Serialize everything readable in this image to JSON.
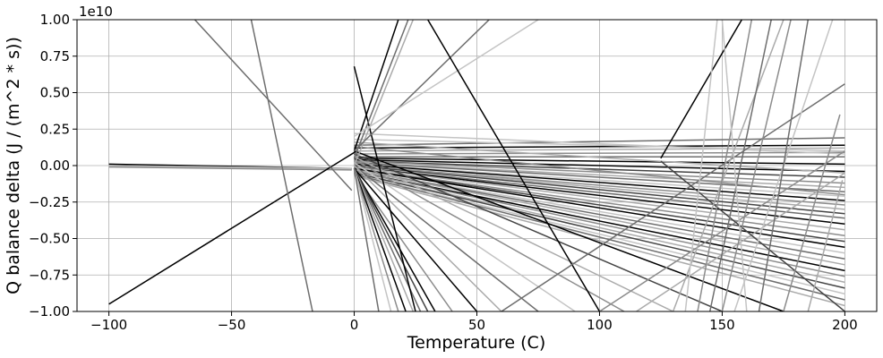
{
  "chart_data": {
    "type": "line",
    "title": "",
    "xlabel": "Temperature (C)",
    "ylabel": "Q balance delta (J / (m^2 * s))",
    "offset_text": "1e10",
    "xlim": [
      -113,
      213
    ],
    "ylim": [
      -1.0,
      1.0
    ],
    "y_multiplier": 10000000000,
    "grid": true,
    "x_ticks": [
      -100,
      -50,
      0,
      50,
      100,
      150,
      200
    ],
    "x_tick_labels": [
      "−100",
      "−50",
      "0",
      "50",
      "100",
      "150",
      "200"
    ],
    "y_ticks": [
      -1.0,
      -0.75,
      -0.5,
      -0.25,
      0.0,
      0.25,
      0.5,
      0.75,
      1.0
    ],
    "y_tick_labels": [
      "−1.00",
      "−0.75",
      "−0.50",
      "−0.25",
      "0.00",
      "0.25",
      "0.50",
      "0.75",
      "1.00"
    ],
    "colors": [
      "#000000",
      "#444444",
      "#6e6e6e",
      "#8c8c8c",
      "#aaaaaa",
      "#c4c4c4"
    ],
    "segments": [
      {
        "x": [
          -100,
          -1
        ],
        "y": [
          0.01,
          -0.02
        ],
        "c": 0
      },
      {
        "x": [
          -100,
          -1
        ],
        "y": [
          0.0,
          -0.02
        ],
        "c": 4
      },
      {
        "x": [
          -100,
          -1
        ],
        "y": [
          -0.005,
          -0.025
        ],
        "c": 5
      },
      {
        "x": [
          -100,
          -1
        ],
        "y": [
          -0.01,
          -0.03
        ],
        "c": 3
      },
      {
        "x": [
          -100,
          1
        ],
        "y": [
          -0.95,
          0.1
        ],
        "c": 0
      },
      {
        "x": [
          -65,
          -1
        ],
        "y": [
          1.0,
          -0.17
        ],
        "c": 2
      },
      {
        "x": [
          -42,
          -17
        ],
        "y": [
          1.0,
          -1.0
        ],
        "c": 2
      },
      {
        "x": [
          0,
          200
        ],
        "y": [
          0.14,
          0.19
        ],
        "c": 2
      },
      {
        "x": [
          0,
          200
        ],
        "y": [
          0.12,
          0.14
        ],
        "c": 0
      },
      {
        "x": [
          0,
          200
        ],
        "y": [
          0.1,
          0.12
        ],
        "c": 4
      },
      {
        "x": [
          0,
          200
        ],
        "y": [
          0.08,
          0.09
        ],
        "c": 3
      },
      {
        "x": [
          0,
          200
        ],
        "y": [
          0.06,
          0.06
        ],
        "c": 2
      },
      {
        "x": [
          0,
          200
        ],
        "y": [
          0.05,
          0.01
        ],
        "c": 0
      },
      {
        "x": [
          0,
          200
        ],
        "y": [
          0.04,
          -0.04
        ],
        "c": 0
      },
      {
        "x": [
          0,
          200
        ],
        "y": [
          0.03,
          -0.08
        ],
        "c": 1
      },
      {
        "x": [
          0,
          200
        ],
        "y": [
          0.03,
          -0.12
        ],
        "c": 3
      },
      {
        "x": [
          0,
          200
        ],
        "y": [
          0.02,
          -0.15
        ],
        "c": 4
      },
      {
        "x": [
          0,
          200
        ],
        "y": [
          0.02,
          -0.18
        ],
        "c": 2
      },
      {
        "x": [
          0,
          200
        ],
        "y": [
          0.01,
          -0.21
        ],
        "c": 5
      },
      {
        "x": [
          0,
          200
        ],
        "y": [
          0.01,
          -0.24
        ],
        "c": 0
      },
      {
        "x": [
          0,
          200
        ],
        "y": [
          0.0,
          -0.27
        ],
        "c": 3
      },
      {
        "x": [
          0,
          200
        ],
        "y": [
          0.0,
          -0.3
        ],
        "c": 4
      },
      {
        "x": [
          0,
          200
        ],
        "y": [
          0.0,
          -0.33
        ],
        "c": 1
      },
      {
        "x": [
          0,
          200
        ],
        "y": [
          -0.01,
          -0.36
        ],
        "c": 2
      },
      {
        "x": [
          0,
          200
        ],
        "y": [
          -0.01,
          -0.4
        ],
        "c": 0
      },
      {
        "x": [
          0,
          200
        ],
        "y": [
          -0.01,
          -0.44
        ],
        "c": 4
      },
      {
        "x": [
          0,
          200
        ],
        "y": [
          -0.02,
          -0.48
        ],
        "c": 3
      },
      {
        "x": [
          0,
          200
        ],
        "y": [
          -0.02,
          -0.52
        ],
        "c": 1
      },
      {
        "x": [
          0,
          200
        ],
        "y": [
          -0.02,
          -0.56
        ],
        "c": 0
      },
      {
        "x": [
          0,
          200
        ],
        "y": [
          -0.03,
          -0.6
        ],
        "c": 5
      },
      {
        "x": [
          0,
          200
        ],
        "y": [
          -0.03,
          -0.64
        ],
        "c": 2
      },
      {
        "x": [
          0,
          200
        ],
        "y": [
          -0.03,
          -0.68
        ],
        "c": 4
      },
      {
        "x": [
          0,
          200
        ],
        "y": [
          -0.04,
          -0.72
        ],
        "c": 0
      },
      {
        "x": [
          0,
          200
        ],
        "y": [
          -0.04,
          -0.76
        ],
        "c": 3
      },
      {
        "x": [
          0,
          200
        ],
        "y": [
          -0.05,
          -0.8
        ],
        "c": 4
      },
      {
        "x": [
          0,
          200
        ],
        "y": [
          -0.05,
          -0.84
        ],
        "c": 1
      },
      {
        "x": [
          0,
          200
        ],
        "y": [
          -0.06,
          -0.88
        ],
        "c": 5
      },
      {
        "x": [
          0,
          200
        ],
        "y": [
          -0.06,
          -0.92
        ],
        "c": 2
      },
      {
        "x": [
          0,
          200
        ],
        "y": [
          -0.07,
          -0.96
        ],
        "c": 4
      },
      {
        "x": [
          0,
          200
        ],
        "y": [
          0.18,
          0.1
        ],
        "c": 5
      },
      {
        "x": [
          0,
          200
        ],
        "y": [
          0.22,
          0.08
        ],
        "c": 5
      },
      {
        "x": [
          0,
          200
        ],
        "y": [
          0.16,
          -0.05
        ],
        "c": 4
      },
      {
        "x": [
          0,
          200
        ],
        "y": [
          0.13,
          -0.2
        ],
        "c": 3
      },
      {
        "x": [
          0,
          175
        ],
        "y": [
          0.1,
          -1.0
        ],
        "c": 0
      },
      {
        "x": [
          0,
          150
        ],
        "y": [
          0.08,
          -1.0
        ],
        "c": 1
      },
      {
        "x": [
          0,
          130
        ],
        "y": [
          0.06,
          -1.0
        ],
        "c": 4
      },
      {
        "x": [
          0,
          110
        ],
        "y": [
          0.04,
          -1.0
        ],
        "c": 3
      },
      {
        "x": [
          0,
          90
        ],
        "y": [
          0.02,
          -1.0
        ],
        "c": 5
      },
      {
        "x": [
          0,
          75
        ],
        "y": [
          0.0,
          -1.0
        ],
        "c": 2
      },
      {
        "x": [
          0,
          60
        ],
        "y": [
          0.0,
          -1.0
        ],
        "c": 4
      },
      {
        "x": [
          0,
          50
        ],
        "y": [
          -0.02,
          -1.0
        ],
        "c": 0
      },
      {
        "x": [
          0,
          40
        ],
        "y": [
          -0.05,
          -1.0
        ],
        "c": 3
      },
      {
        "x": [
          0,
          33
        ],
        "y": [
          -0.02,
          -1.0
        ],
        "c": 0
      },
      {
        "x": [
          0,
          30
        ],
        "y": [
          -0.02,
          -1.0
        ],
        "c": 1
      },
      {
        "x": [
          0,
          27
        ],
        "y": [
          -0.02,
          -1.0
        ],
        "c": 2
      },
      {
        "x": [
          0,
          24
        ],
        "y": [
          -0.02,
          -1.0
        ],
        "c": 4
      },
      {
        "x": [
          0,
          21
        ],
        "y": [
          -0.02,
          -1.0
        ],
        "c": 0
      },
      {
        "x": [
          0,
          18
        ],
        "y": [
          -0.02,
          -1.0
        ],
        "c": 3
      },
      {
        "x": [
          0,
          15
        ],
        "y": [
          -0.02,
          -1.0
        ],
        "c": 5
      },
      {
        "x": [
          0,
          10
        ],
        "y": [
          -0.02,
          -1.0
        ],
        "c": 2
      },
      {
        "x": [
          0,
          25
        ],
        "y": [
          0.68,
          -1.0
        ],
        "c": 0
      },
      {
        "x": [
          0,
          18
        ],
        "y": [
          0.1,
          1.0
        ],
        "c": 0
      },
      {
        "x": [
          0,
          22
        ],
        "y": [
          0.05,
          1.0
        ],
        "c": 2
      },
      {
        "x": [
          0,
          24
        ],
        "y": [
          0.0,
          1.0
        ],
        "c": 4
      },
      {
        "x": [
          0,
          55
        ],
        "y": [
          0.1,
          1.0
        ],
        "c": 2
      },
      {
        "x": [
          0,
          75
        ],
        "y": [
          0.2,
          1.0
        ],
        "c": 5
      },
      {
        "x": [
          30,
          100
        ],
        "y": [
          1.0,
          -1.0
        ],
        "c": 0
      },
      {
        "x": [
          60,
          200
        ],
        "y": [
          -1.0,
          0.56
        ],
        "c": 2
      },
      {
        "x": [
          100,
          200
        ],
        "y": [
          -1.0,
          0.1
        ],
        "c": 3
      },
      {
        "x": [
          115,
          200
        ],
        "y": [
          -1.0,
          -0.05
        ],
        "c": 4
      },
      {
        "x": [
          125,
          200
        ],
        "y": [
          0.03,
          -1.0
        ],
        "c": 1
      },
      {
        "x": [
          125,
          158
        ],
        "y": [
          0.05,
          1.0
        ],
        "c": 0
      },
      {
        "x": [
          130,
          175
        ],
        "y": [
          -1.0,
          1.0
        ],
        "c": 4
      },
      {
        "x": [
          135,
          148
        ],
        "y": [
          -1.0,
          1.0
        ],
        "c": 5
      },
      {
        "x": [
          140,
          162
        ],
        "y": [
          -1.0,
          1.0
        ],
        "c": 3
      },
      {
        "x": [
          145,
          170
        ],
        "y": [
          -1.0,
          1.0
        ],
        "c": 2
      },
      {
        "x": [
          150,
          178
        ],
        "y": [
          -1.0,
          1.0
        ],
        "c": 3
      },
      {
        "x": [
          155,
          195
        ],
        "y": [
          -1.0,
          1.0
        ],
        "c": 5
      },
      {
        "x": [
          160,
          150
        ],
        "y": [
          -1.0,
          1.0
        ],
        "c": 5
      },
      {
        "x": [
          165,
          185
        ],
        "y": [
          -1.0,
          1.0
        ],
        "c": 2
      },
      {
        "x": [
          175,
          198
        ],
        "y": [
          -1.0,
          0.35
        ],
        "c": 3
      },
      {
        "x": [
          185,
          199
        ],
        "y": [
          -1.0,
          -0.1
        ],
        "c": 4
      }
    ]
  }
}
